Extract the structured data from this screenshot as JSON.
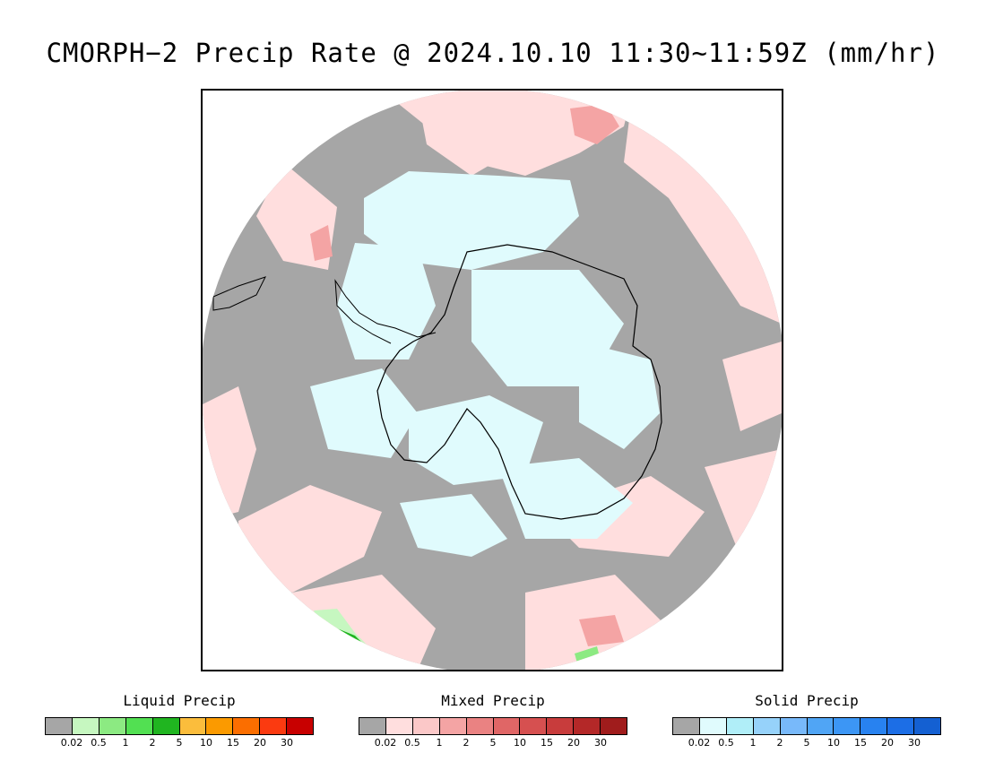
{
  "title": "CMORPH−2 Precip Rate @ 2024.10.10 11:30~11:59Z (mm/hr)",
  "colors": {
    "no_precip": "#a6a6a6",
    "liquid_light": "#ffdede",
    "ice": "#e0fbfd"
  },
  "legends": [
    {
      "title": "Liquid Precip",
      "colors": [
        "#a6a6a6",
        "#c6f7c0",
        "#8cea82",
        "#52e052",
        "#20b520",
        "#fbbd3c",
        "#fb9a00",
        "#fb6e00",
        "#fb3a10",
        "#c80000"
      ],
      "ticks": [
        "0.02",
        "0.5",
        "1",
        "2",
        "5",
        "10",
        "15",
        "20",
        "30"
      ]
    },
    {
      "title": "Mixed Precip",
      "colors": [
        "#a6a6a6",
        "#ffdede",
        "#fbc8c8",
        "#f4a4a4",
        "#ea8282",
        "#e06666",
        "#d65050",
        "#c83c3c",
        "#b42828",
        "#a01c1c"
      ],
      "ticks": [
        "0.02",
        "0.5",
        "1",
        "2",
        "5",
        "10",
        "15",
        "20",
        "30"
      ]
    },
    {
      "title": "Solid Precip",
      "colors": [
        "#a6a6a6",
        "#e0fbfd",
        "#b0eef8",
        "#96d2fa",
        "#78b9fa",
        "#50a5f5",
        "#3c96f5",
        "#2882f0",
        "#1c6ee6",
        "#1460d2"
      ],
      "ticks": [
        "0.02",
        "0.5",
        "1",
        "2",
        "5",
        "10",
        "15",
        "20",
        "30"
      ]
    }
  ]
}
